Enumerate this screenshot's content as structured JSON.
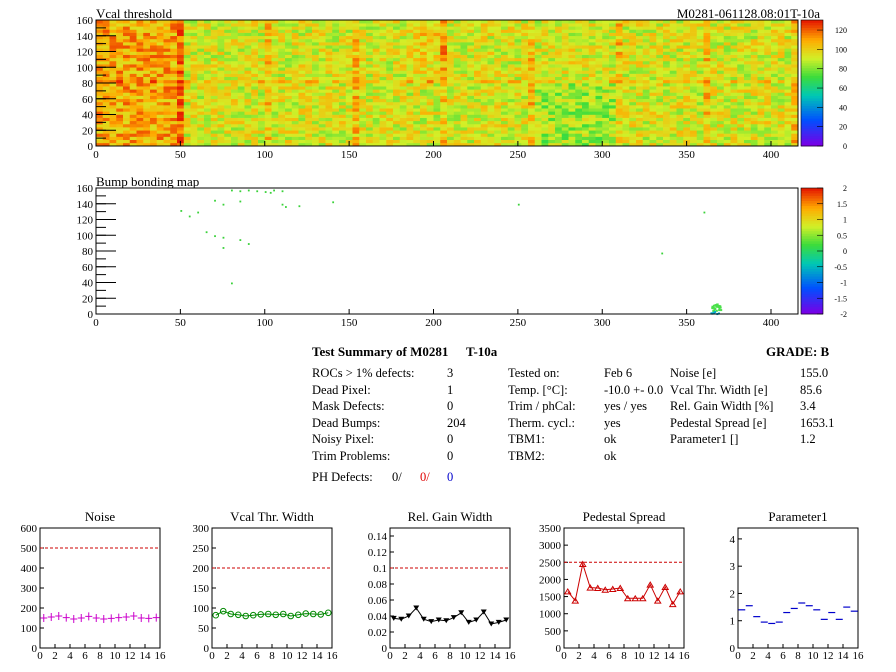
{
  "header": {
    "map1_title": "Vcal threshold",
    "module_id": "M0281-061128.08:01T-10a",
    "map2_title": "Bump bonding map"
  },
  "maps": {
    "x_ticks": [
      0,
      50,
      100,
      150,
      200,
      250,
      300,
      350,
      400
    ],
    "y_ticks": [
      0,
      20,
      40,
      60,
      80,
      100,
      120,
      140,
      160
    ],
    "vcal_scale_ticks": [
      "0",
      "20",
      "40",
      "60",
      "80",
      "100",
      "120"
    ],
    "bump_scale_ticks": [
      "-2",
      "-1.5",
      "-1",
      "-0.5",
      "0",
      "0.5",
      "1",
      "1.5",
      "2"
    ]
  },
  "summary": {
    "title": "Test Summary of M0281",
    "sub": "T-10a",
    "grade": "GRADE:  B",
    "col1": [
      {
        "label": "ROCs > 1% defects:",
        "value": "3"
      },
      {
        "label": "Dead Pixel:",
        "value": "1"
      },
      {
        "label": "Mask Defects:",
        "value": "0"
      },
      {
        "label": "Dead Bumps:",
        "value": "204"
      },
      {
        "label": "Noisy Pixel:",
        "value": "0"
      },
      {
        "label": "Trim Problems:",
        "value": "0"
      }
    ],
    "ph_label": "PH Defects:",
    "ph_values": [
      "0/",
      "0/",
      "0"
    ],
    "col2": [
      {
        "label": "Tested on:",
        "value": "Feb 6"
      },
      {
        "label": "Temp. [°C]:",
        "value": "-10.0 +- 0.0"
      },
      {
        "label": "Trim / phCal:",
        "value": "yes / yes"
      },
      {
        "label": "Therm. cycl.:",
        "value": "yes"
      },
      {
        "label": "TBM1:",
        "value": "ok"
      },
      {
        "label": "TBM2:",
        "value": "ok"
      }
    ],
    "col3": [
      {
        "label": "Noise [e]",
        "value": "155.0"
      },
      {
        "label": "Vcal Thr. Width [e]",
        "value": "85.6"
      },
      {
        "label": "Rel. Gain Width [%]",
        "value": "3.4"
      },
      {
        "label": "Pedestal Spread [e]",
        "value": "1653.1"
      },
      {
        "label": "Parameter1 []",
        "value": "1.2"
      }
    ]
  },
  "colors": {
    "noise": "#cc00cc",
    "vcal": "#008800",
    "gain": "#000000",
    "pedestal": "#cc0000",
    "param": "#0000cc",
    "ref_line": "#cc0000"
  },
  "chart_data": [
    {
      "type": "scatter",
      "title": "Noise",
      "x": [
        0,
        1,
        2,
        3,
        4,
        5,
        6,
        7,
        8,
        9,
        10,
        11,
        12,
        13,
        14,
        15
      ],
      "values": [
        150,
        155,
        160,
        152,
        145,
        150,
        158,
        150,
        145,
        148,
        152,
        155,
        160,
        150,
        148,
        152
      ],
      "ref": 500,
      "ylim": [
        0,
        600
      ],
      "xlim": [
        0,
        16
      ],
      "yticks": [
        0,
        100,
        200,
        300,
        400,
        500,
        600
      ],
      "yticklabels": [
        "0",
        "100",
        "200",
        "300",
        "400",
        "500",
        "600"
      ],
      "xticks": [
        0,
        2,
        4,
        6,
        8,
        10,
        12,
        14,
        16
      ],
      "marker": "cross"
    },
    {
      "type": "line",
      "title": "Vcal Thr. Width",
      "x": [
        0,
        1,
        2,
        3,
        4,
        5,
        6,
        7,
        8,
        9,
        10,
        11,
        12,
        13,
        14,
        15
      ],
      "values": [
        82,
        92,
        85,
        83,
        80,
        82,
        84,
        85,
        83,
        85,
        80,
        83,
        86,
        85,
        84,
        88
      ],
      "ref": 200,
      "ylim": [
        0,
        300
      ],
      "xlim": [
        0,
        16
      ],
      "yticks": [
        0,
        50,
        100,
        150,
        200,
        250,
        300
      ],
      "yticklabels": [
        "0",
        "50",
        "100",
        "150",
        "200",
        "250",
        "300"
      ],
      "xticks": [
        0,
        2,
        4,
        6,
        8,
        10,
        12,
        14,
        16
      ],
      "marker": "circle"
    },
    {
      "type": "line",
      "title": "Rel. Gain Width",
      "x": [
        0,
        1,
        2,
        3,
        4,
        5,
        6,
        7,
        8,
        9,
        10,
        11,
        12,
        13,
        14,
        15
      ],
      "values": [
        0.037,
        0.036,
        0.04,
        0.05,
        0.036,
        0.033,
        0.035,
        0.034,
        0.038,
        0.044,
        0.032,
        0.035,
        0.045,
        0.03,
        0.032,
        0.035
      ],
      "ref": 0.1,
      "ylim": [
        0,
        0.15
      ],
      "xlim": [
        0,
        16
      ],
      "yticks": [
        0,
        0.02,
        0.04,
        0.06,
        0.08,
        0.1,
        0.12,
        0.14
      ],
      "yticklabels": [
        "0",
        "0.02",
        "0.04",
        "0.06",
        "0.08",
        "0.1",
        "0.12",
        "0.14"
      ],
      "xticks": [
        0,
        2,
        4,
        6,
        8,
        10,
        12,
        14,
        16
      ],
      "marker": "triangle-down"
    },
    {
      "type": "line",
      "title": "Pedestal Spread",
      "x": [
        0,
        1,
        2,
        3,
        4,
        5,
        6,
        7,
        8,
        9,
        10,
        11,
        12,
        13,
        14,
        15
      ],
      "values": [
        1650,
        1380,
        2450,
        1760,
        1750,
        1700,
        1720,
        1750,
        1450,
        1450,
        1450,
        1850,
        1380,
        1780,
        1280,
        1650
      ],
      "ref": 2500,
      "ylim": [
        0,
        3500
      ],
      "xlim": [
        0,
        16
      ],
      "yticks": [
        0,
        500,
        1000,
        1500,
        2000,
        2500,
        3000,
        3500
      ],
      "yticklabels": [
        "0",
        "500",
        "1000",
        "1500",
        "2000",
        "2500",
        "3000",
        "3500"
      ],
      "xticks": [
        0,
        2,
        4,
        6,
        8,
        10,
        12,
        14,
        16
      ],
      "marker": "triangle-up"
    },
    {
      "type": "scatter",
      "title": "Parameter1",
      "x": [
        0,
        1,
        2,
        3,
        4,
        5,
        6,
        7,
        8,
        9,
        10,
        11,
        12,
        13,
        14,
        15
      ],
      "values": [
        1.4,
        1.55,
        1.15,
        0.95,
        0.9,
        0.95,
        1.3,
        1.45,
        1.65,
        1.55,
        1.4,
        1.05,
        1.3,
        1.05,
        1.5,
        1.35
      ],
      "ref": null,
      "ylim": [
        0,
        4.4
      ],
      "xlim": [
        0,
        16
      ],
      "yticks": [
        0,
        1,
        2,
        3,
        4
      ],
      "yticklabels": [
        "0",
        "1",
        "2",
        "3",
        "4"
      ],
      "xticks": [
        0,
        2,
        4,
        6,
        8,
        10,
        12,
        14,
        16
      ],
      "marker": "hbar"
    }
  ]
}
